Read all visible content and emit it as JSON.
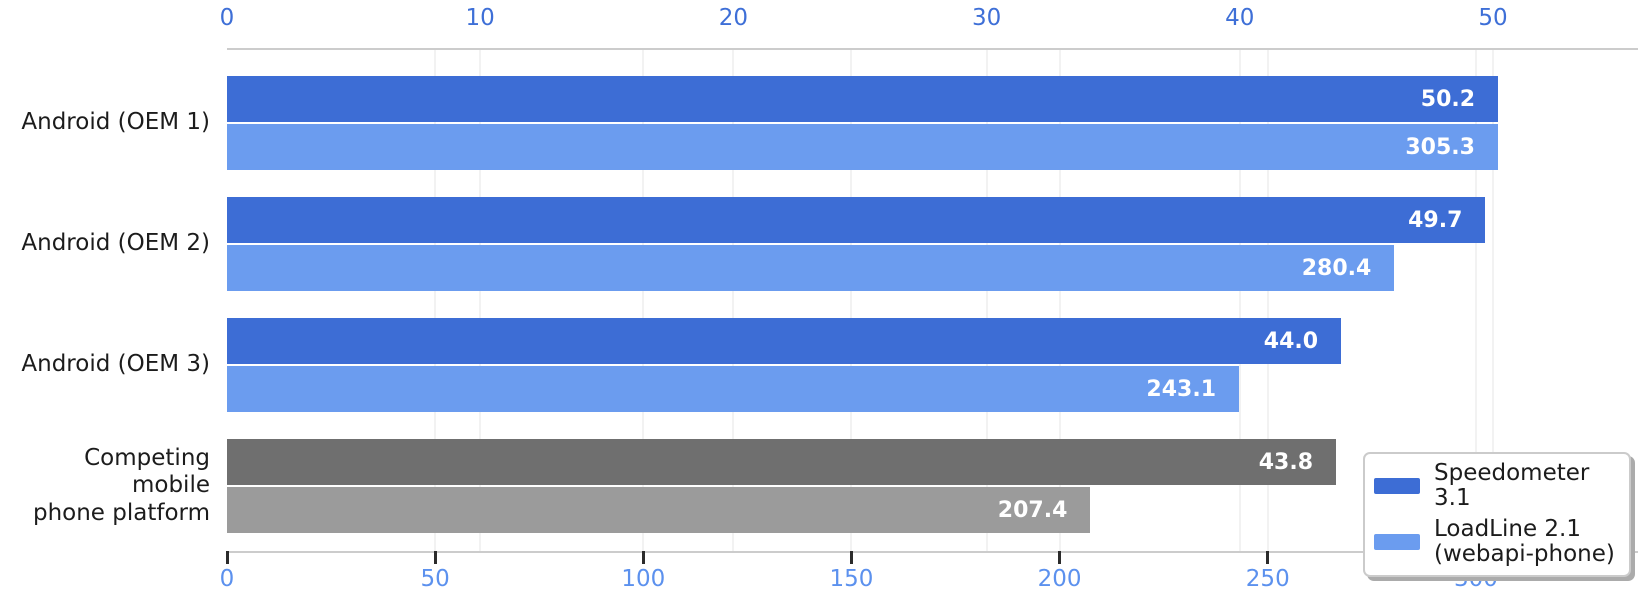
{
  "chart_data": {
    "type": "bar",
    "orientation": "horizontal",
    "title": "",
    "categories": [
      "Android (OEM 1)",
      "Android (OEM 2)",
      "Android (OEM 3)",
      "Competing mobile\nphone platform"
    ],
    "series": [
      {
        "name": "Speedometer 3.1",
        "axis": "top",
        "values": [
          50.2,
          49.7,
          44.0,
          43.8
        ],
        "value_labels": [
          "50.2",
          "49.7",
          "44.0",
          "43.8"
        ],
        "bar_colors": [
          "#3D6DD5",
          "#3D6DD5",
          "#3D6DD5",
          "#6F6F6F"
        ]
      },
      {
        "name": "LoadLine 2.1\n(webapi-phone)",
        "axis": "bottom",
        "values": [
          305.3,
          280.4,
          243.1,
          207.4
        ],
        "value_labels": [
          "305.3",
          "280.4",
          "243.1",
          "207.4"
        ],
        "bar_colors": [
          "#6B9CEF",
          "#6B9CEF",
          "#6B9CEF",
          "#9B9B9B"
        ]
      }
    ],
    "top_axis": {
      "tick_values": [
        0,
        10,
        20,
        30,
        40,
        50
      ],
      "tick_labels": [
        "0",
        "10",
        "20",
        "30",
        "40",
        "50"
      ],
      "range": [
        0,
        55.7
      ],
      "label_color": "#3E6FD7"
    },
    "bottom_axis": {
      "tick_values": [
        0,
        50,
        100,
        150,
        200,
        250,
        300
      ],
      "tick_labels": [
        "0",
        "50",
        "100",
        "150",
        "200",
        "250",
        "300"
      ],
      "range": [
        0,
        339
      ],
      "label_color": "#5C91EE"
    },
    "grid": "vertical-faint",
    "legend": {
      "position": "lower-right",
      "entries": [
        {
          "label": "Speedometer 3.1",
          "color": "#3D6DD5"
        },
        {
          "label": "LoadLine 2.1\n(webapi-phone)",
          "color": "#6B9CEF"
        }
      ]
    }
  }
}
